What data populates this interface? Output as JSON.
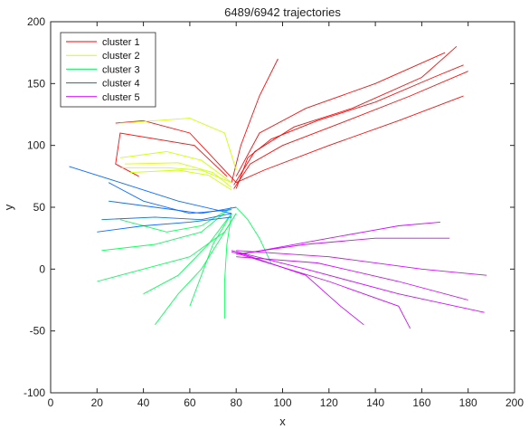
{
  "chart_data": {
    "type": "line",
    "title": "6489/6942 trajectories",
    "xlabel": "x",
    "ylabel": "y",
    "xlim": [
      0,
      200
    ],
    "ylim": [
      -100,
      200
    ],
    "xticks": [
      0,
      20,
      40,
      60,
      80,
      100,
      120,
      140,
      160,
      180,
      200
    ],
    "yticks": [
      -100,
      -50,
      0,
      50,
      100,
      150,
      200
    ],
    "grid": false,
    "legend_position": "top-left",
    "series": [
      {
        "name": "cluster 1",
        "color": "#ff0000",
        "trajectories": [
          [
            [
              80,
              65
            ],
            [
              85,
              90
            ],
            [
              95,
              105
            ],
            [
              115,
              120
            ],
            [
              140,
              135
            ],
            [
              165,
              155
            ],
            [
              178,
              165
            ]
          ],
          [
            [
              79,
              68
            ],
            [
              88,
              95
            ],
            [
              105,
              115
            ],
            [
              130,
              130
            ],
            [
              160,
              155
            ],
            [
              175,
              180
            ]
          ],
          [
            [
              78,
              70
            ],
            [
              82,
              100
            ],
            [
              90,
              140
            ],
            [
              98,
              170
            ]
          ],
          [
            [
              80,
              75
            ],
            [
              90,
              110
            ],
            [
              110,
              130
            ],
            [
              140,
              150
            ],
            [
              170,
              175
            ]
          ],
          [
            [
              76,
              75
            ],
            [
              62,
              100
            ],
            [
              30,
              110
            ],
            [
              28,
              85
            ],
            [
              38,
              75
            ]
          ],
          [
            [
              80,
              70
            ],
            [
              60,
              110
            ],
            [
              40,
              120
            ],
            [
              28,
              118
            ]
          ],
          [
            [
              80,
              70
            ],
            [
              92,
              80
            ],
            [
              120,
              100
            ],
            [
              150,
              120
            ],
            [
              178,
              140
            ]
          ],
          [
            [
              79,
              65
            ],
            [
              86,
              85
            ],
            [
              100,
              100
            ],
            [
              125,
              118
            ],
            [
              155,
              140
            ],
            [
              180,
              160
            ]
          ]
        ]
      },
      {
        "name": "cluster 2",
        "color": "#ccff00",
        "trajectories": [
          [
            [
              30,
              82
            ],
            [
              50,
              82
            ],
            [
              65,
              80
            ],
            [
              78,
              70
            ]
          ],
          [
            [
              32,
              85
            ],
            [
              55,
              86
            ],
            [
              70,
              78
            ],
            [
              78,
              66
            ]
          ],
          [
            [
              30,
              90
            ],
            [
              50,
              95
            ],
            [
              65,
              88
            ],
            [
              78,
              70
            ]
          ],
          [
            [
              34,
              78
            ],
            [
              55,
              80
            ],
            [
              68,
              76
            ],
            [
              78,
              64
            ]
          ],
          [
            [
              30,
              118
            ],
            [
              60,
              122
            ],
            [
              75,
              110
            ],
            [
              80,
              80
            ]
          ]
        ]
      },
      {
        "name": "cluster 3",
        "color": "#00ff55",
        "trajectories": [
          [
            [
              20,
              -10
            ],
            [
              40,
              0
            ],
            [
              60,
              10
            ],
            [
              75,
              30
            ],
            [
              80,
              45
            ]
          ],
          [
            [
              22,
              15
            ],
            [
              45,
              20
            ],
            [
              65,
              30
            ],
            [
              78,
              50
            ]
          ],
          [
            [
              45,
              -45
            ],
            [
              55,
              -20
            ],
            [
              65,
              0
            ],
            [
              75,
              30
            ],
            [
              80,
              45
            ]
          ],
          [
            [
              75,
              -40
            ],
            [
              75,
              -10
            ],
            [
              76,
              20
            ],
            [
              78,
              45
            ]
          ],
          [
            [
              60,
              -30
            ],
            [
              65,
              -5
            ],
            [
              70,
              20
            ],
            [
              78,
              45
            ]
          ],
          [
            [
              30,
              40
            ],
            [
              50,
              30
            ],
            [
              65,
              35
            ],
            [
              78,
              50
            ]
          ],
          [
            [
              95,
              5
            ],
            [
              90,
              25
            ],
            [
              85,
              40
            ],
            [
              80,
              50
            ]
          ],
          [
            [
              40,
              -20
            ],
            [
              55,
              -5
            ],
            [
              68,
              20
            ],
            [
              78,
              45
            ]
          ]
        ]
      },
      {
        "name": "cluster 4",
        "color": "#0066ff",
        "trajectories": [
          [
            [
              8,
              83
            ],
            [
              30,
              70
            ],
            [
              55,
              55
            ],
            [
              78,
              45
            ]
          ],
          [
            [
              25,
              70
            ],
            [
              40,
              55
            ],
            [
              60,
              45
            ],
            [
              78,
              48
            ]
          ],
          [
            [
              22,
              40
            ],
            [
              45,
              42
            ],
            [
              65,
              40
            ],
            [
              78,
              45
            ]
          ],
          [
            [
              20,
              30
            ],
            [
              40,
              35
            ],
            [
              60,
              38
            ],
            [
              78,
              42
            ]
          ],
          [
            [
              25,
              55
            ],
            [
              45,
              50
            ],
            [
              65,
              45
            ],
            [
              80,
              50
            ]
          ]
        ]
      },
      {
        "name": "cluster 5",
        "color": "#cc00ff",
        "trajectories": [
          [
            [
              78,
              15
            ],
            [
              110,
              0
            ],
            [
              150,
              -20
            ],
            [
              187,
              -35
            ]
          ],
          [
            [
              80,
              10
            ],
            [
              115,
              5
            ],
            [
              150,
              -10
            ],
            [
              180,
              -25
            ]
          ],
          [
            [
              80,
              12
            ],
            [
              110,
              20
            ],
            [
              140,
              25
            ],
            [
              172,
              25
            ]
          ],
          [
            [
              78,
              14
            ],
            [
              120,
              -10
            ],
            [
              150,
              -30
            ],
            [
              155,
              -48
            ]
          ],
          [
            [
              80,
              15
            ],
            [
              120,
              10
            ],
            [
              160,
              0
            ],
            [
              188,
              -5
            ]
          ],
          [
            [
              82,
              12
            ],
            [
              120,
              25
            ],
            [
              150,
              35
            ],
            [
              168,
              38
            ]
          ],
          [
            [
              80,
              14
            ],
            [
              110,
              -5
            ],
            [
              125,
              -30
            ],
            [
              135,
              -45
            ]
          ]
        ]
      }
    ]
  }
}
